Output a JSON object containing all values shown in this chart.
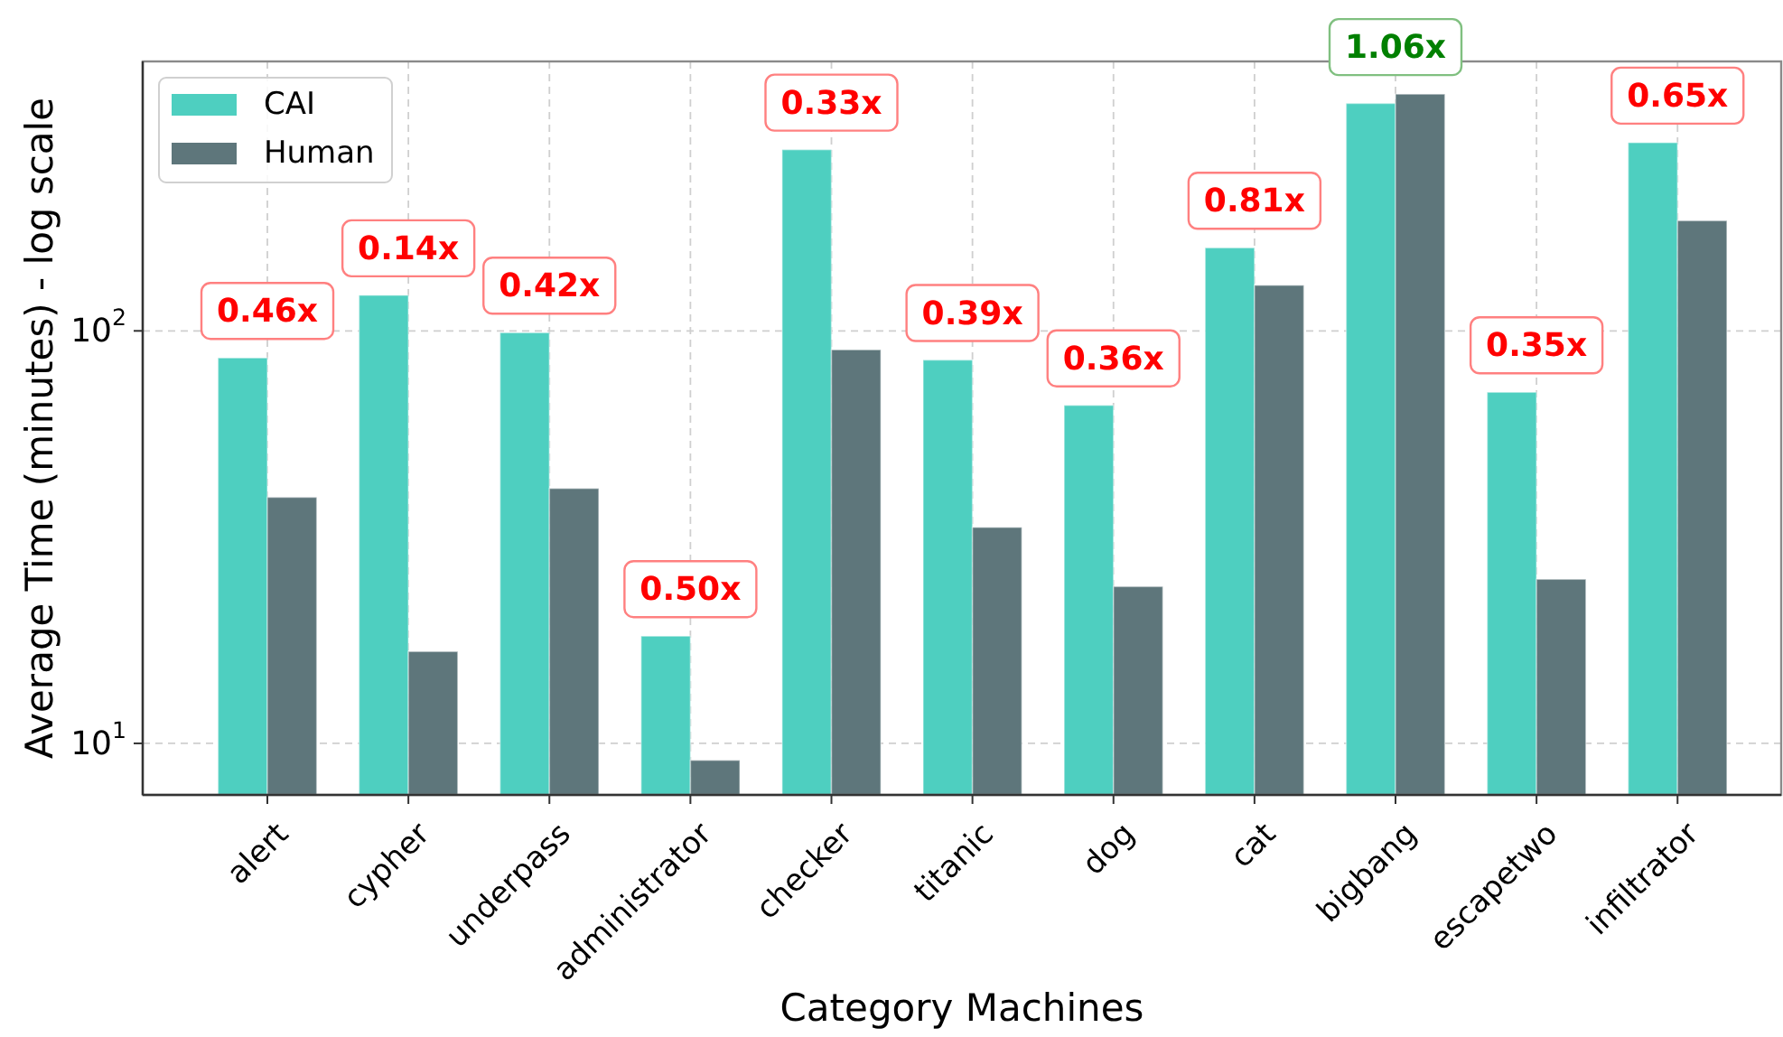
{
  "chart_data": {
    "type": "bar",
    "xlabel": "Category Machines",
    "ylabel": "Average Time (minutes) - log scale",
    "categories": [
      "alert",
      "cypher",
      "underpass",
      "administrator",
      "checker",
      "titanic",
      "dog",
      "cat",
      "bigbang",
      "escapetwo",
      "infiltrator"
    ],
    "series": [
      {
        "name": "CAI",
        "color": "#4ecfc0",
        "values": [
          86,
          122,
          99,
          18.2,
          275,
          85,
          66,
          159,
          356,
          71,
          286
        ]
      },
      {
        "name": "Human",
        "color": "#5e767b",
        "values": [
          39.5,
          16.7,
          41.5,
          9.1,
          90,
          33.4,
          24,
          129,
          375,
          25,
          185
        ]
      }
    ],
    "log": true,
    "ylim": [
      7.5,
      450
    ],
    "yticks": [
      {
        "value": 10,
        "label": "10$^{1}$"
      },
      {
        "value": 100,
        "label": "10$^{2}$"
      }
    ],
    "grid": true,
    "legend": "top left",
    "annotations": [
      {
        "text": "0.46x",
        "x": "alert",
        "y": 86
      },
      {
        "text": "0.14x",
        "x": "cypher",
        "y": 122
      },
      {
        "text": "0.42x",
        "x": "underpass",
        "y": 99
      },
      {
        "text": "0.50x",
        "x": "administrator",
        "y": 18.2
      },
      {
        "text": "0.33x",
        "x": "checker",
        "y": 275
      },
      {
        "text": "0.39x",
        "x": "titanic",
        "y": 85
      },
      {
        "text": "0.36x",
        "x": "dog",
        "y": 66
      },
      {
        "text": "0.81x",
        "x": "cat",
        "y": 159
      },
      {
        "text": "1.06x",
        "x": "bigbang",
        "y": 375
      },
      {
        "text": "0.35x",
        "x": "escapetwo",
        "y": 71
      },
      {
        "text": "0.65x",
        "x": "infiltrator",
        "y": 286
      }
    ]
  }
}
